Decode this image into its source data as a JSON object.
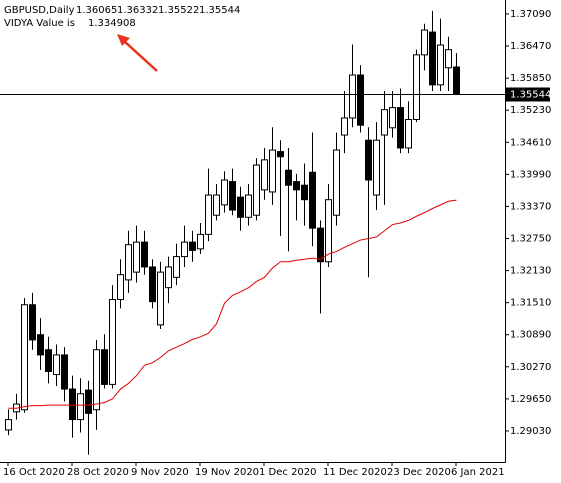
{
  "chart_data": {
    "type": "candlestick",
    "title": "GBPUSD,Daily",
    "categories": [
      "16 Oct 2020",
      null,
      null,
      null,
      null,
      null,
      null,
      null,
      "28 Oct 2020",
      null,
      null,
      null,
      null,
      null,
      null,
      null,
      "9 Nov 2020",
      null,
      null,
      null,
      null,
      null,
      null,
      null,
      "19 Nov 2020",
      null,
      null,
      null,
      null,
      null,
      null,
      null,
      "1 Dec 2020",
      null,
      null,
      null,
      null,
      null,
      null,
      null,
      "11 Dec 2020",
      null,
      null,
      null,
      null,
      null,
      null,
      null,
      "23 Dec 2020",
      null,
      null,
      null,
      null,
      null,
      null,
      null,
      "6 Jan 2021"
    ],
    "open": [
      1.2905,
      1.294,
      1.2944,
      1.3147,
      1.3089,
      1.306,
      1.3012,
      1.305,
      1.2984,
      1.2925,
      1.2982,
      1.2944,
      1.306,
      1.2993,
      1.3157,
      1.3195,
      1.321,
      1.3268,
      1.322,
      1.3108,
      1.318,
      1.32,
      1.324,
      1.3268,
      1.3255,
      1.3283,
      1.332,
      1.334,
      1.3385,
      1.3355,
      1.3316,
      1.332,
      1.3369,
      1.3365,
      1.3443,
      1.3407,
      1.3385,
      1.3378,
      1.3403,
      1.3295,
      1.323,
      1.332,
      1.3475,
      1.3508,
      1.3591,
      1.3465,
      1.3359,
      1.3475,
      1.3489,
      1.3528,
      1.345,
      1.3505,
      1.363,
      1.3674,
      1.3572,
      1.3605,
      1.36065
    ],
    "high": [
      1.2945,
      1.2975,
      1.316,
      1.317,
      1.3121,
      1.3085,
      1.307,
      1.3065,
      1.301,
      1.3005,
      1.3,
      1.3079,
      1.309,
      1.3185,
      1.3235,
      1.329,
      1.33,
      1.329,
      1.3235,
      1.323,
      1.324,
      1.3265,
      1.33,
      1.329,
      1.3305,
      1.341,
      1.338,
      1.3405,
      1.341,
      1.3375,
      1.338,
      1.343,
      1.345,
      1.349,
      1.3465,
      1.345,
      1.34,
      1.342,
      1.348,
      1.331,
      1.338,
      1.348,
      1.356,
      1.365,
      1.361,
      1.349,
      1.35,
      1.356,
      1.356,
      1.3565,
      1.354,
      1.364,
      1.369,
      1.3715,
      1.37,
      1.3665,
      1.36332
    ],
    "low": [
      1.2895,
      1.2925,
      1.2938,
      1.306,
      1.3021,
      1.2995,
      1.299,
      1.296,
      1.289,
      1.29,
      1.2857,
      1.2905,
      1.2985,
      1.2985,
      1.314,
      1.317,
      1.319,
      1.3205,
      1.314,
      1.31,
      1.315,
      1.3185,
      1.322,
      1.323,
      1.3245,
      1.327,
      1.331,
      1.3325,
      1.332,
      1.329,
      1.33,
      1.331,
      1.335,
      1.334,
      1.328,
      1.325,
      1.331,
      1.33,
      1.326,
      1.313,
      1.322,
      1.33,
      1.344,
      1.349,
      1.348,
      1.32,
      1.333,
      1.334,
      1.347,
      1.344,
      1.344,
      1.35,
      1.36,
      1.356,
      1.356,
      1.356,
      1.35522
    ],
    "close": [
      1.2925,
      1.2955,
      1.3147,
      1.3079,
      1.305,
      1.3018,
      1.305,
      1.2984,
      1.2925,
      1.2975,
      1.2937,
      1.306,
      1.2993,
      1.3157,
      1.3205,
      1.3263,
      1.3268,
      1.322,
      1.3153,
      1.321,
      1.322,
      1.324,
      1.3268,
      1.3252,
      1.3283,
      1.3359,
      1.3359,
      1.3388,
      1.333,
      1.3316,
      1.3359,
      1.3417,
      1.3427,
      1.3446,
      1.3433,
      1.3378,
      1.3369,
      1.335,
      1.3295,
      1.323,
      1.335,
      1.3446,
      1.3508,
      1.3591,
      1.3494,
      1.3388,
      1.3465,
      1.3524,
      1.3528,
      1.345,
      1.3505,
      1.363,
      1.3678,
      1.3572,
      1.3649,
      1.364,
      1.35544
    ],
    "bull_color": "#ffffff",
    "bear_color": "#000000",
    "indicator": {
      "label": "VIDYA Value is",
      "color": "#e00000",
      "values": [
        1.2947,
        1.2947,
        1.295,
        1.2952,
        1.2952,
        1.2953,
        1.2953,
        1.2953,
        1.2953,
        1.2953,
        1.2953,
        1.2955,
        1.2958,
        1.2965,
        1.2984,
        1.2995,
        1.301,
        1.303,
        1.3035,
        1.3045,
        1.3058,
        1.3065,
        1.3072,
        1.308,
        1.3085,
        1.3092,
        1.311,
        1.315,
        1.3165,
        1.3172,
        1.318,
        1.3192,
        1.32,
        1.3218,
        1.323,
        1.323,
        1.3233,
        1.3235,
        1.3237,
        1.3235,
        1.3245,
        1.325,
        1.3258,
        1.3265,
        1.3272,
        1.3275,
        1.3278,
        1.329,
        1.3302,
        1.3305,
        1.331,
        1.3318,
        1.3325,
        1.3333,
        1.334,
        1.3347,
        1.334908
      ]
    },
    "ylim": [
      1.2843,
      1.3736
    ],
    "yticks": [
      {
        "value": 1.2903,
        "label": "1.29030"
      },
      {
        "value": 1.2965,
        "label": "1.29650"
      },
      {
        "value": 1.3027,
        "label": "1.30270"
      },
      {
        "value": 1.3089,
        "label": "1.30890"
      },
      {
        "value": 1.3151,
        "label": "1.31510"
      },
      {
        "value": 1.3213,
        "label": "1.32130"
      },
      {
        "value": 1.3275,
        "label": "1.32750"
      },
      {
        "value": 1.3337,
        "label": "1.33370"
      },
      {
        "value": 1.3399,
        "label": "1.33990"
      },
      {
        "value": 1.3461,
        "label": "1.34610"
      },
      {
        "value": 1.3523,
        "label": "1.35230"
      },
      {
        "value": 1.3585,
        "label": "1.35850"
      },
      {
        "value": 1.3647,
        "label": "1.36470"
      },
      {
        "value": 1.3709,
        "label": "1.37090"
      }
    ],
    "grid": false
  }
}
